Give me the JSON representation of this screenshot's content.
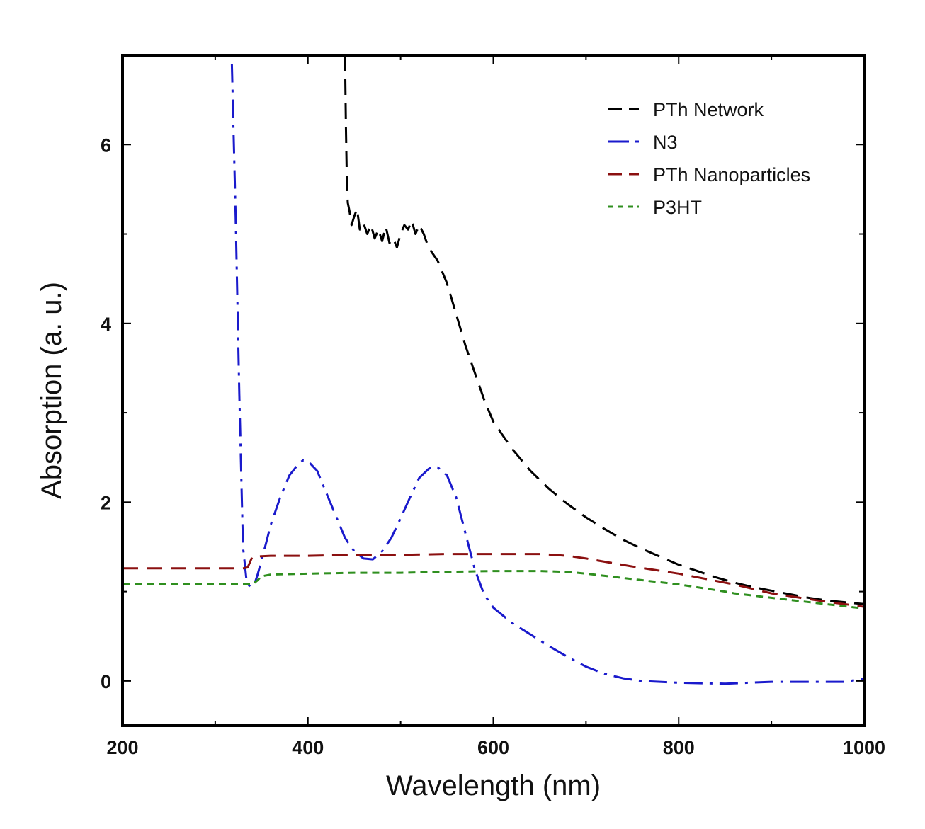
{
  "chart_data": {
    "type": "line",
    "xlabel": "Wavelength (nm)",
    "ylabel": "Absorption (a. u.)",
    "xlim": [
      200,
      1000
    ],
    "ylim": [
      -0.5,
      7.0
    ],
    "xticks": [
      200,
      400,
      600,
      800,
      1000
    ],
    "yticks": [
      0,
      2,
      4,
      6
    ],
    "x_minor_step": 100,
    "y_minor_step": 1,
    "grid": false,
    "legend_position": "top-right",
    "series": [
      {
        "name": "PTh Network",
        "color": "#000000",
        "style": "dashed",
        "points": [
          [
            440,
            7.0
          ],
          [
            441,
            6.2
          ],
          [
            442,
            5.6
          ],
          [
            443,
            5.35
          ],
          [
            445,
            5.25
          ],
          [
            447,
            5.1
          ],
          [
            450,
            5.2
          ],
          [
            453,
            5.28
          ],
          [
            456,
            5.05
          ],
          [
            460,
            5.12
          ],
          [
            464,
            5.0
          ],
          [
            468,
            5.1
          ],
          [
            472,
            4.95
          ],
          [
            476,
            5.05
          ],
          [
            480,
            4.92
          ],
          [
            484,
            5.08
          ],
          [
            488,
            4.9
          ],
          [
            492,
            4.95
          ],
          [
            496,
            4.85
          ],
          [
            500,
            5.0
          ],
          [
            504,
            5.1
          ],
          [
            508,
            5.05
          ],
          [
            512,
            5.15
          ],
          [
            516,
            5.0
          ],
          [
            520,
            5.1
          ],
          [
            525,
            5.0
          ],
          [
            530,
            4.85
          ],
          [
            540,
            4.7
          ],
          [
            550,
            4.45
          ],
          [
            560,
            4.1
          ],
          [
            570,
            3.75
          ],
          [
            580,
            3.45
          ],
          [
            590,
            3.15
          ],
          [
            600,
            2.9
          ],
          [
            620,
            2.6
          ],
          [
            640,
            2.35
          ],
          [
            660,
            2.15
          ],
          [
            680,
            1.98
          ],
          [
            700,
            1.83
          ],
          [
            720,
            1.7
          ],
          [
            740,
            1.58
          ],
          [
            760,
            1.48
          ],
          [
            780,
            1.39
          ],
          [
            800,
            1.3
          ],
          [
            820,
            1.23
          ],
          [
            840,
            1.16
          ],
          [
            860,
            1.1
          ],
          [
            880,
            1.05
          ],
          [
            900,
            1.01
          ],
          [
            920,
            0.97
          ],
          [
            940,
            0.93
          ],
          [
            960,
            0.9
          ],
          [
            980,
            0.88
          ],
          [
            1000,
            0.86
          ]
        ]
      },
      {
        "name": "N3",
        "color": "#1a1acc",
        "style": "dashdot",
        "points": [
          [
            318,
            6.9
          ],
          [
            322,
            5.2
          ],
          [
            326,
            3.2
          ],
          [
            330,
            1.5
          ],
          [
            334,
            1.1
          ],
          [
            338,
            1.05
          ],
          [
            342,
            1.07
          ],
          [
            346,
            1.2
          ],
          [
            350,
            1.35
          ],
          [
            355,
            1.55
          ],
          [
            360,
            1.75
          ],
          [
            370,
            2.05
          ],
          [
            380,
            2.3
          ],
          [
            390,
            2.43
          ],
          [
            395,
            2.47
          ],
          [
            400,
            2.46
          ],
          [
            410,
            2.35
          ],
          [
            420,
            2.1
          ],
          [
            430,
            1.85
          ],
          [
            440,
            1.6
          ],
          [
            450,
            1.45
          ],
          [
            460,
            1.37
          ],
          [
            470,
            1.36
          ],
          [
            480,
            1.45
          ],
          [
            490,
            1.6
          ],
          [
            500,
            1.82
          ],
          [
            510,
            2.05
          ],
          [
            520,
            2.27
          ],
          [
            530,
            2.37
          ],
          [
            535,
            2.4
          ],
          [
            540,
            2.39
          ],
          [
            550,
            2.3
          ],
          [
            560,
            2.05
          ],
          [
            570,
            1.65
          ],
          [
            580,
            1.25
          ],
          [
            590,
            0.97
          ],
          [
            600,
            0.82
          ],
          [
            620,
            0.65
          ],
          [
            640,
            0.52
          ],
          [
            660,
            0.39
          ],
          [
            680,
            0.27
          ],
          [
            700,
            0.16
          ],
          [
            720,
            0.08
          ],
          [
            740,
            0.03
          ],
          [
            760,
            0.0
          ],
          [
            800,
            -0.02
          ],
          [
            850,
            -0.03
          ],
          [
            900,
            -0.01
          ],
          [
            950,
            -0.01
          ],
          [
            980,
            -0.01
          ],
          [
            1000,
            0.03
          ]
        ]
      },
      {
        "name": "PTh Nanoparticles",
        "color": "#8b1010",
        "style": "dashed",
        "points": [
          [
            200,
            1.26
          ],
          [
            250,
            1.26
          ],
          [
            300,
            1.26
          ],
          [
            330,
            1.26
          ],
          [
            335,
            1.27
          ],
          [
            338,
            1.34
          ],
          [
            340,
            1.39
          ],
          [
            360,
            1.4
          ],
          [
            400,
            1.4
          ],
          [
            450,
            1.41
          ],
          [
            500,
            1.41
          ],
          [
            550,
            1.42
          ],
          [
            600,
            1.42
          ],
          [
            650,
            1.42
          ],
          [
            680,
            1.4
          ],
          [
            700,
            1.37
          ],
          [
            750,
            1.28
          ],
          [
            800,
            1.2
          ],
          [
            850,
            1.1
          ],
          [
            860,
            1.08
          ],
          [
            880,
            1.03
          ],
          [
            900,
            0.98
          ],
          [
            950,
            0.9
          ],
          [
            1000,
            0.83
          ]
        ]
      },
      {
        "name": "P3HT",
        "color": "#2f8f1f",
        "style": "dotted",
        "points": [
          [
            200,
            1.08
          ],
          [
            250,
            1.08
          ],
          [
            300,
            1.08
          ],
          [
            340,
            1.08
          ],
          [
            345,
            1.12
          ],
          [
            350,
            1.17
          ],
          [
            360,
            1.19
          ],
          [
            400,
            1.2
          ],
          [
            450,
            1.21
          ],
          [
            500,
            1.21
          ],
          [
            550,
            1.22
          ],
          [
            600,
            1.23
          ],
          [
            650,
            1.23
          ],
          [
            680,
            1.22
          ],
          [
            700,
            1.2
          ],
          [
            750,
            1.14
          ],
          [
            800,
            1.08
          ],
          [
            850,
            1.0
          ],
          [
            860,
            0.98
          ],
          [
            900,
            0.93
          ],
          [
            950,
            0.87
          ],
          [
            1000,
            0.81
          ]
        ]
      }
    ]
  }
}
